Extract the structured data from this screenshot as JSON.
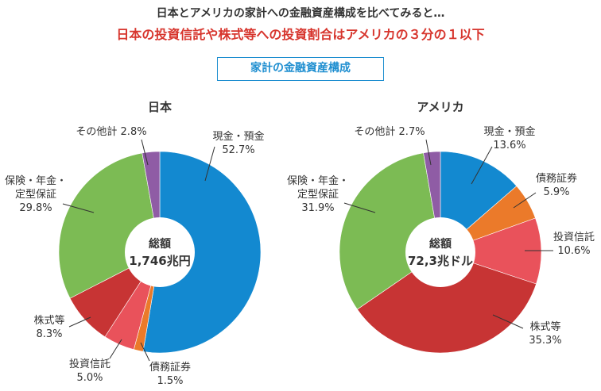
{
  "header": {
    "line1": "日本とアメリカの家計への金融資産構成を比べてみると…",
    "line2": "日本の投資信託や株式等への投資割合はアメリカの３分の１以下",
    "section_title": "家計の金融資産構成"
  },
  "colors": {
    "cash": "#1389d0",
    "bonds": "#eb7a2a",
    "funds": "#e9525b",
    "stocks": "#c73434",
    "insurance": "#7cbb54",
    "other": "#8f5ca5",
    "accent_red": "#d7352d",
    "accent_blue": "#1e8ed0"
  },
  "chart_data": [
    {
      "type": "pie",
      "title": "日本",
      "center_label": [
        "総額",
        "1,746兆円"
      ],
      "slices": [
        {
          "key": "cash",
          "label": [
            "現金・預金",
            "52.7%"
          ],
          "value": 52.7
        },
        {
          "key": "bonds",
          "label": [
            "債務証券",
            "1.5%"
          ],
          "value": 1.5
        },
        {
          "key": "funds",
          "label": [
            "投資信託",
            "5.0%"
          ],
          "value": 5.0
        },
        {
          "key": "stocks",
          "label": [
            "株式等",
            "8.3%"
          ],
          "value": 8.3
        },
        {
          "key": "insurance",
          "label": [
            "保険・年金・",
            "定型保証",
            "29.8%"
          ],
          "value": 29.8
        },
        {
          "key": "other",
          "label": [
            "その他計 2.8%"
          ],
          "value": 2.8
        }
      ]
    },
    {
      "type": "pie",
      "title": "アメリカ",
      "center_label": [
        "総額",
        "72,3兆ドル"
      ],
      "slices": [
        {
          "key": "cash",
          "label": [
            "現金・預金",
            "13.6%"
          ],
          "value": 13.6
        },
        {
          "key": "bonds",
          "label": [
            "債務証券",
            "5.9%"
          ],
          "value": 5.9
        },
        {
          "key": "funds",
          "label": [
            "投資信託",
            "10.6%"
          ],
          "value": 10.6
        },
        {
          "key": "stocks",
          "label": [
            "株式等",
            "35.3%"
          ],
          "value": 35.3
        },
        {
          "key": "insurance",
          "label": [
            "保険・年金・",
            "定型保証",
            "31.9%"
          ],
          "value": 31.9
        },
        {
          "key": "other",
          "label": [
            "その他計 2.7%"
          ],
          "value": 2.7
        }
      ]
    }
  ]
}
